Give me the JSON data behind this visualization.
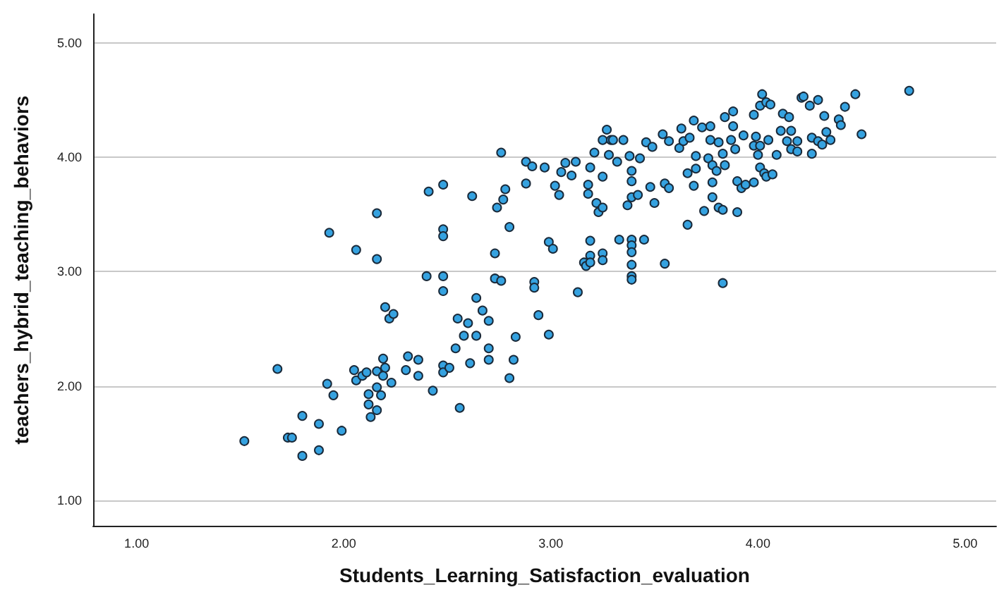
{
  "chart_data": {
    "type": "scatter",
    "xlabel": "Students_Learning_Satisfaction_evaluation",
    "ylabel": "teachers_hybrid_teaching_behaviors",
    "xlim": [
      0.79,
      5.15
    ],
    "ylim": [
      0.78,
      5.25
    ],
    "xticks": [
      {
        "value": 1,
        "label": "1.00"
      },
      {
        "value": 2,
        "label": "2.00"
      },
      {
        "value": 3,
        "label": "3.00"
      },
      {
        "value": 4,
        "label": "4.00"
      },
      {
        "value": 5,
        "label": "5.00"
      }
    ],
    "yticks": [
      {
        "value": 1,
        "label": "1.00"
      },
      {
        "value": 2,
        "label": "2.00"
      },
      {
        "value": 3,
        "label": "3.00"
      },
      {
        "value": 4,
        "label": "4.00"
      },
      {
        "value": 5,
        "label": "5.00"
      }
    ],
    "grid": "y",
    "marker": "circle",
    "series": [
      {
        "color": "#35a2e0",
        "x": [
          1.52,
          1.68,
          1.73,
          1.75,
          1.8,
          1.8,
          1.88,
          1.88,
          1.92,
          1.95,
          1.99,
          1.93,
          2.06,
          2.16,
          2.16,
          2.2,
          2.22,
          2.24,
          2.05,
          2.06,
          2.09,
          2.11,
          2.16,
          2.19,
          2.2,
          2.19,
          2.12,
          2.12,
          2.13,
          2.16,
          2.16,
          2.18,
          2.23,
          2.3,
          2.31,
          2.36,
          2.36,
          2.43,
          2.4,
          2.41,
          2.48,
          2.48,
          2.48,
          2.48,
          2.48,
          2.48,
          2.48,
          2.51,
          2.54,
          2.55,
          2.56,
          2.58,
          2.6,
          2.61,
          2.62,
          2.64,
          2.64,
          2.67,
          2.7,
          2.7,
          2.7,
          2.73,
          2.73,
          2.76,
          2.74,
          2.76,
          2.77,
          2.78,
          2.8,
          2.8,
          2.82,
          2.83,
          2.88,
          2.88,
          2.91,
          2.92,
          2.92,
          2.94,
          2.97,
          2.99,
          2.99,
          3.01,
          3.02,
          3.04,
          3.05,
          3.07,
          3.1,
          3.12,
          3.13,
          3.16,
          3.17,
          3.18,
          3.18,
          3.19,
          3.19,
          3.19,
          3.19,
          3.21,
          3.22,
          3.23,
          3.25,
          3.25,
          3.25,
          3.25,
          3.25,
          3.27,
          3.28,
          3.29,
          3.3,
          3.32,
          3.33,
          3.35,
          3.37,
          3.38,
          3.39,
          3.39,
          3.39,
          3.39,
          3.39,
          3.39,
          3.39,
          3.39,
          3.39,
          3.42,
          3.43,
          3.45,
          3.46,
          3.48,
          3.49,
          3.5,
          3.54,
          3.55,
          3.55,
          3.57,
          3.57,
          3.62,
          3.63,
          3.64,
          3.66,
          3.66,
          3.67,
          3.69,
          3.69,
          3.7,
          3.7,
          3.73,
          3.74,
          3.76,
          3.77,
          3.77,
          3.78,
          3.78,
          3.78,
          3.8,
          3.81,
          3.81,
          3.83,
          3.83,
          3.83,
          3.84,
          3.84,
          3.87,
          3.88,
          3.88,
          3.89,
          3.9,
          3.9,
          3.92,
          3.93,
          3.94,
          3.98,
          3.98,
          3.98,
          3.99,
          4.0,
          4.01,
          4.01,
          4.01,
          4.02,
          4.03,
          4.04,
          4.04,
          4.05,
          4.06,
          4.07,
          4.09,
          4.11,
          4.12,
          4.14,
          4.15,
          4.16,
          4.16,
          4.19,
          4.19,
          4.21,
          4.22,
          4.25,
          4.26,
          4.26,
          4.29,
          4.29,
          4.31,
          4.32,
          4.33,
          4.35,
          4.39,
          4.4,
          4.42,
          4.47,
          4.5,
          4.73
        ],
        "values": [
          1.52,
          2.15,
          1.55,
          1.55,
          1.74,
          1.39,
          1.67,
          1.44,
          2.02,
          1.92,
          1.61,
          3.34,
          3.19,
          3.51,
          3.11,
          2.69,
          2.59,
          2.63,
          2.14,
          2.05,
          2.09,
          2.12,
          2.13,
          2.24,
          2.16,
          2.09,
          1.93,
          1.84,
          1.73,
          1.79,
          1.99,
          1.92,
          2.03,
          2.14,
          2.26,
          2.23,
          2.09,
          1.96,
          2.96,
          3.7,
          3.76,
          3.37,
          3.31,
          2.96,
          2.83,
          2.18,
          2.12,
          2.16,
          2.33,
          2.59,
          1.81,
          2.44,
          2.55,
          2.2,
          3.66,
          2.77,
          2.44,
          2.66,
          2.57,
          2.33,
          2.23,
          3.16,
          2.94,
          2.92,
          3.56,
          4.04,
          3.63,
          3.72,
          2.07,
          3.39,
          2.23,
          2.43,
          3.96,
          3.77,
          3.92,
          2.91,
          2.86,
          2.62,
          3.91,
          2.45,
          3.26,
          3.2,
          3.75,
          3.67,
          3.87,
          3.95,
          3.84,
          3.96,
          2.82,
          3.08,
          3.05,
          3.68,
          3.76,
          3.91,
          3.27,
          3.14,
          3.08,
          4.04,
          3.6,
          3.52,
          4.15,
          3.56,
          3.16,
          3.1,
          3.83,
          4.24,
          4.02,
          4.15,
          4.15,
          3.96,
          3.28,
          4.15,
          3.58,
          4.01,
          3.88,
          3.79,
          3.65,
          3.28,
          3.23,
          3.17,
          3.06,
          2.96,
          2.93,
          3.67,
          3.99,
          3.28,
          4.13,
          3.74,
          4.09,
          3.6,
          4.2,
          3.77,
          3.07,
          3.73,
          4.14,
          4.08,
          4.25,
          4.14,
          3.41,
          3.86,
          4.17,
          4.32,
          3.75,
          4.01,
          3.9,
          4.26,
          3.53,
          3.99,
          4.27,
          4.15,
          3.78,
          3.65,
          3.93,
          3.88,
          4.13,
          3.56,
          3.54,
          2.9,
          4.03,
          4.35,
          3.93,
          4.15,
          4.27,
          4.4,
          4.07,
          3.52,
          3.79,
          3.73,
          4.19,
          3.76,
          3.78,
          4.1,
          4.37,
          4.18,
          4.02,
          4.45,
          3.91,
          4.1,
          4.55,
          3.86,
          4.48,
          3.83,
          4.15,
          4.46,
          3.85,
          4.02,
          4.23,
          4.38,
          4.14,
          4.35,
          4.07,
          4.23,
          4.14,
          4.05,
          4.52,
          4.53,
          4.45,
          4.03,
          4.17,
          4.5,
          4.14,
          4.11,
          4.36,
          4.22,
          4.15,
          4.33,
          4.28,
          4.44,
          4.55,
          4.2,
          4.58
        ]
      }
    ]
  }
}
